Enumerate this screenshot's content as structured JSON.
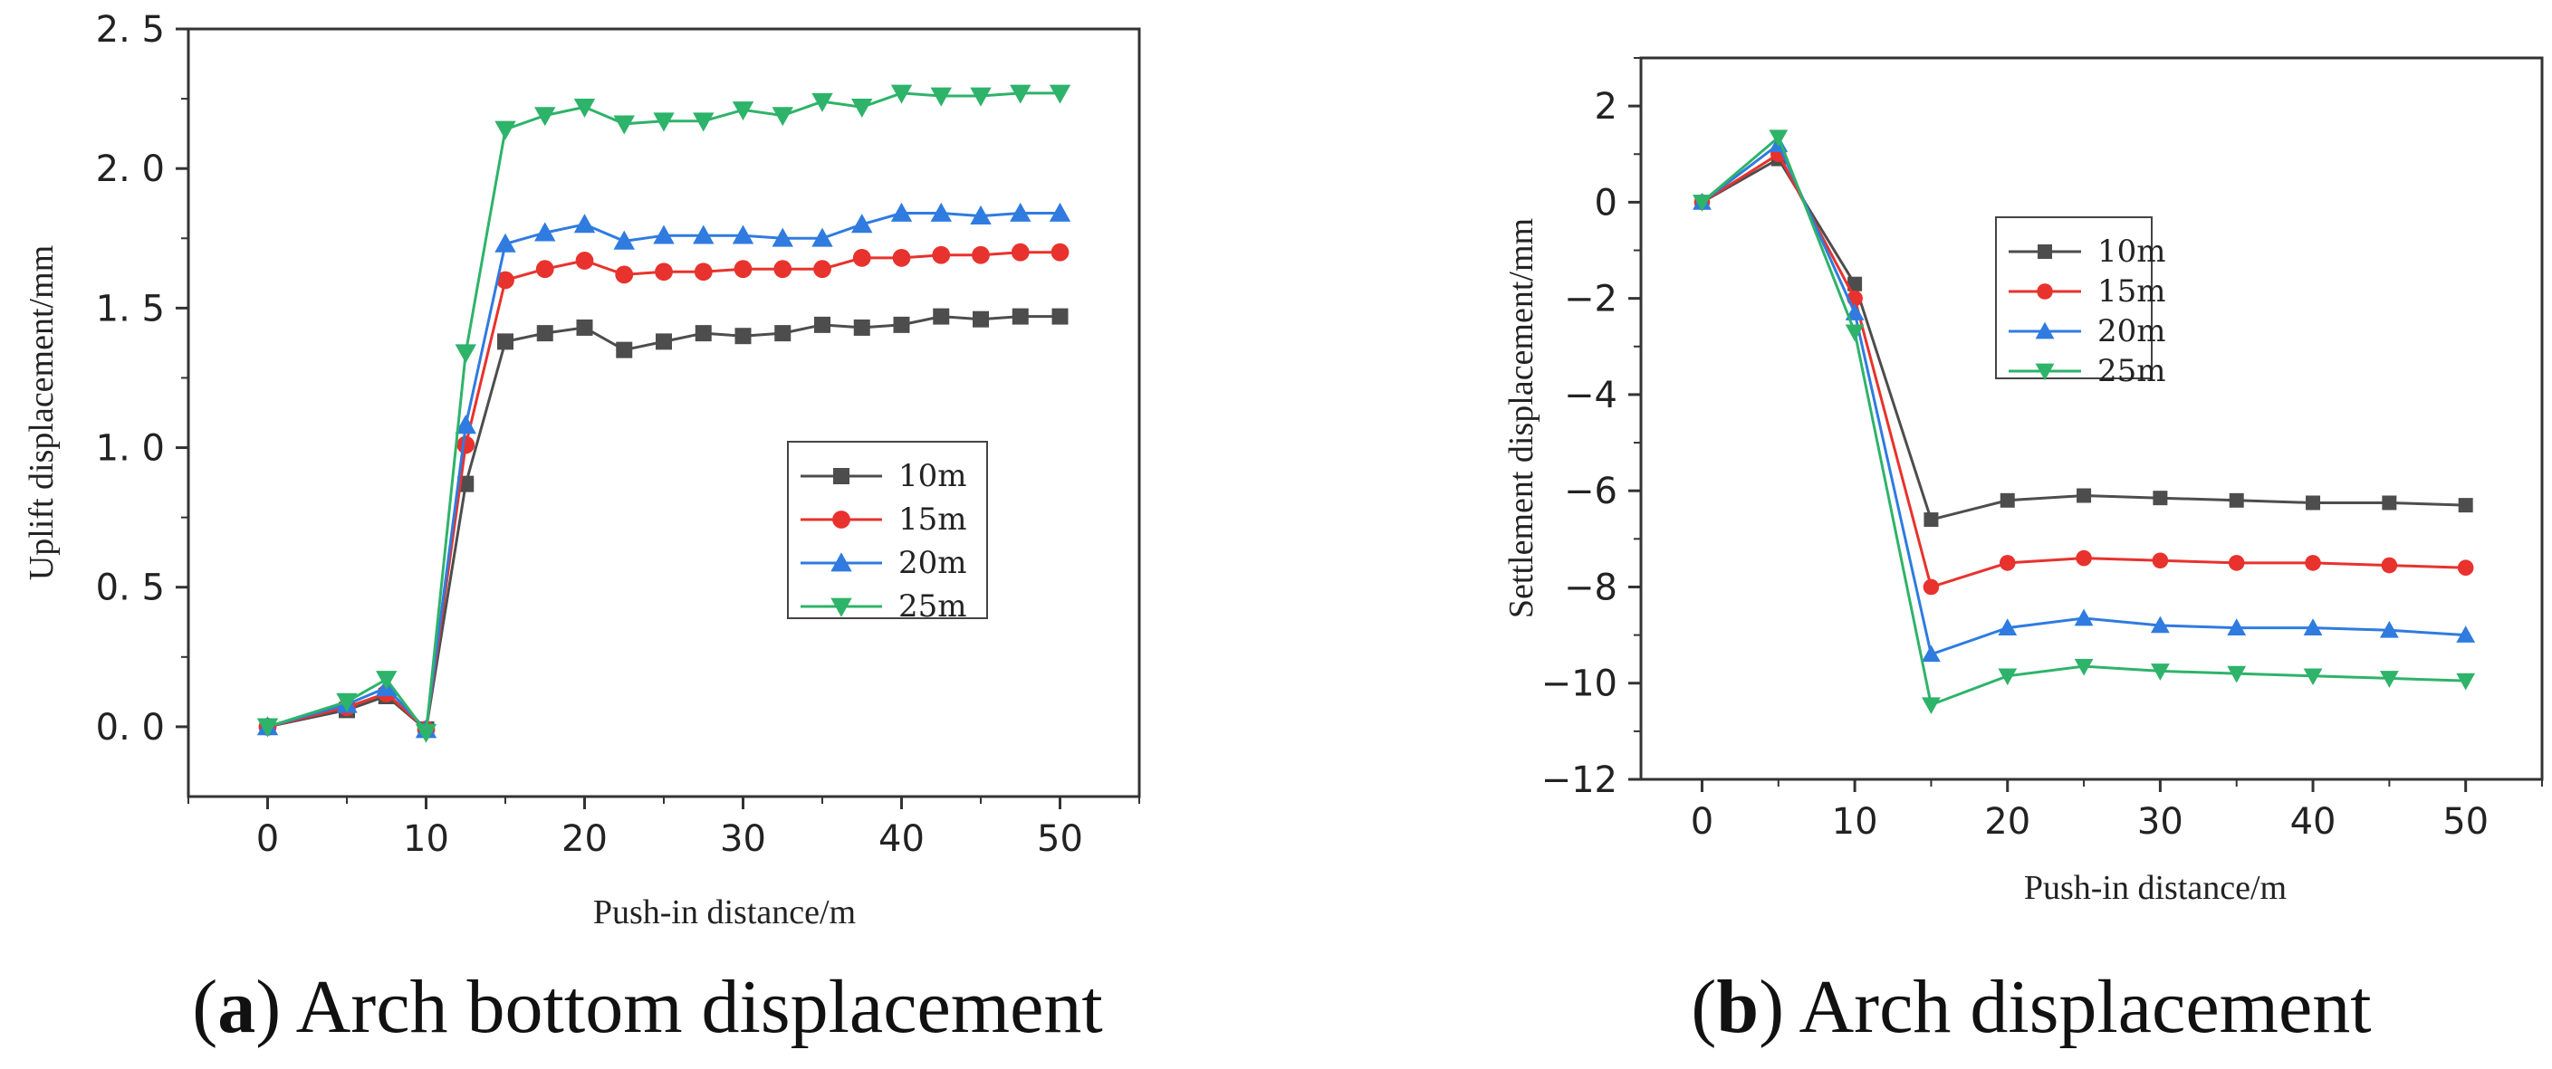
{
  "chart_data": [
    {
      "type": "line",
      "caption_letter": "a",
      "caption_text": "Arch bottom displacement",
      "xlabel": "Push-in distance/m",
      "ylabel": "Uplift displacement/mm",
      "xlim": [
        -5,
        55
      ],
      "ylim": [
        -0.25,
        2.5
      ],
      "xticks": [
        0,
        10,
        20,
        30,
        40,
        50
      ],
      "yticks": [
        0.0,
        0.5,
        1.0,
        1.5,
        2.0,
        2.5
      ],
      "yfmt": 1,
      "legend_position": "center-right",
      "series": [
        {
          "name": "10m",
          "color": "#4d4d4d",
          "marker": "square",
          "x": [
            0,
            5,
            7.5,
            10,
            12.5,
            15,
            17.5,
            20,
            22.5,
            25,
            27.5,
            30,
            32.5,
            35,
            37.5,
            40,
            42.5,
            45,
            47.5,
            50
          ],
          "y": [
            0,
            0.06,
            0.11,
            -0.01,
            0.87,
            1.38,
            1.41,
            1.43,
            1.35,
            1.38,
            1.41,
            1.4,
            1.41,
            1.44,
            1.43,
            1.44,
            1.47,
            1.46,
            1.47,
            1.47
          ]
        },
        {
          "name": "15m",
          "color": "#e8322d",
          "marker": "circle",
          "x": [
            0,
            5,
            7.5,
            10,
            12.5,
            15,
            17.5,
            20,
            22.5,
            25,
            27.5,
            30,
            32.5,
            35,
            37.5,
            40,
            42.5,
            45,
            47.5,
            50
          ],
          "y": [
            0,
            0.07,
            0.12,
            -0.01,
            1.01,
            1.6,
            1.64,
            1.67,
            1.62,
            1.63,
            1.63,
            1.64,
            1.64,
            1.64,
            1.68,
            1.68,
            1.69,
            1.69,
            1.7,
            1.7
          ]
        },
        {
          "name": "20m",
          "color": "#2f7be0",
          "marker": "triangle-up",
          "x": [
            0,
            5,
            7.5,
            10,
            12.5,
            15,
            17.5,
            20,
            22.5,
            25,
            27.5,
            30,
            32.5,
            35,
            37.5,
            40,
            42.5,
            45,
            47.5,
            50
          ],
          "y": [
            0,
            0.08,
            0.14,
            -0.01,
            1.08,
            1.73,
            1.77,
            1.8,
            1.74,
            1.76,
            1.76,
            1.76,
            1.75,
            1.75,
            1.8,
            1.84,
            1.84,
            1.83,
            1.84,
            1.84
          ]
        },
        {
          "name": "25m",
          "color": "#2eb36a",
          "marker": "triangle-down",
          "x": [
            0,
            5,
            7.5,
            10,
            12.5,
            15,
            17.5,
            20,
            22.5,
            25,
            27.5,
            30,
            32.5,
            35,
            37.5,
            40,
            42.5,
            45,
            47.5,
            50
          ],
          "y": [
            0,
            0.09,
            0.17,
            -0.02,
            1.34,
            2.14,
            2.19,
            2.22,
            2.16,
            2.17,
            2.17,
            2.21,
            2.19,
            2.24,
            2.22,
            2.27,
            2.26,
            2.26,
            2.27,
            2.27
          ]
        }
      ]
    },
    {
      "type": "line",
      "caption_letter": "b",
      "caption_text": "Arch displacement",
      "xlabel": "Push-in distance/m",
      "ylabel": "Settlement displacement/mm",
      "xlim": [
        -4,
        55
      ],
      "ylim": [
        -12,
        3
      ],
      "xticks": [
        0,
        10,
        20,
        30,
        40,
        50
      ],
      "yticks": [
        2,
        0,
        -2,
        -4,
        -6,
        -8,
        -10,
        -12
      ],
      "yfmt": 0,
      "legend_position": "top-center",
      "series": [
        {
          "name": "10m",
          "color": "#4d4d4d",
          "marker": "square",
          "x": [
            0,
            5,
            10,
            15,
            20,
            25,
            30,
            35,
            40,
            45,
            50
          ],
          "y": [
            0,
            0.9,
            -1.7,
            -6.6,
            -6.2,
            -6.1,
            -6.15,
            -6.2,
            -6.25,
            -6.25,
            -6.3
          ]
        },
        {
          "name": "15m",
          "color": "#e8322d",
          "marker": "circle",
          "x": [
            0,
            5,
            10,
            15,
            20,
            25,
            30,
            35,
            40,
            45,
            50
          ],
          "y": [
            0,
            1.0,
            -2.0,
            -8.0,
            -7.5,
            -7.4,
            -7.45,
            -7.5,
            -7.5,
            -7.55,
            -7.6
          ]
        },
        {
          "name": "20m",
          "color": "#2f7be0",
          "marker": "triangle-up",
          "x": [
            0,
            5,
            10,
            15,
            20,
            25,
            30,
            35,
            40,
            45,
            50
          ],
          "y": [
            0,
            1.2,
            -2.3,
            -9.4,
            -8.85,
            -8.65,
            -8.8,
            -8.85,
            -8.85,
            -8.9,
            -9.0
          ]
        },
        {
          "name": "25m",
          "color": "#2eb36a",
          "marker": "triangle-down",
          "x": [
            0,
            5,
            10,
            15,
            20,
            25,
            30,
            35,
            40,
            45,
            50
          ],
          "y": [
            0,
            1.35,
            -2.7,
            -10.45,
            -9.85,
            -9.65,
            -9.75,
            -9.8,
            -9.85,
            -9.9,
            -9.95
          ]
        }
      ]
    }
  ]
}
